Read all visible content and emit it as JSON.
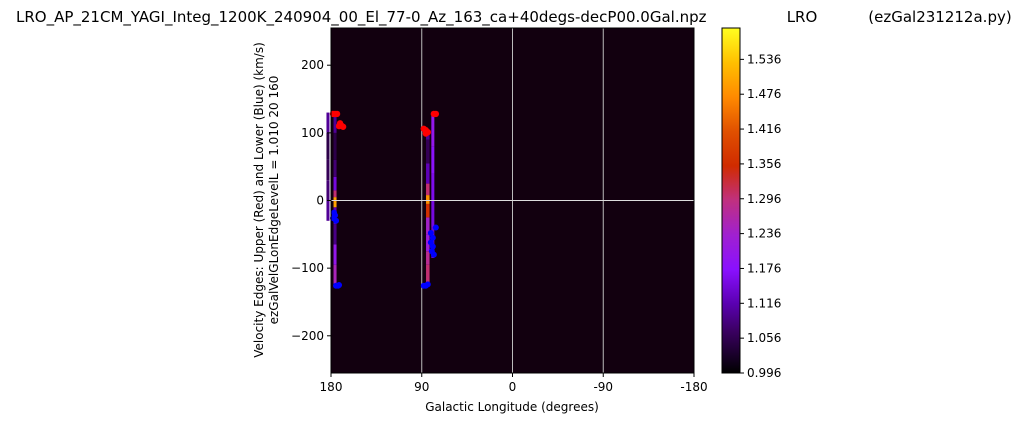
{
  "title": {
    "filename": "LRO_AP_21CM_YAGI_Integ_1200K_240904_00_El_77-0_Az_163_ca+40degs-decP00.0Gal.npz",
    "station": "LRO",
    "program": "(ezGal231212a.py)"
  },
  "chart_data": {
    "type": "heatmap",
    "xlabel": "Galactic Longitude (degrees)",
    "ylabel_line1": "Velocity Edges: Upper (Red) and Lower (Blue) (km/s)",
    "ylabel_line2": "ezGalVelGLonEdgeLevelL = 1.010  20  160",
    "xlim": [
      180,
      -180
    ],
    "ylim": [
      -255,
      255
    ],
    "x_ticks": [
      180,
      90,
      0,
      -90,
      -180
    ],
    "x_tick_labels": [
      "180",
      "90",
      "0",
      "-90",
      "-180"
    ],
    "y_ticks": [
      200,
      100,
      0,
      -100,
      -200
    ],
    "y_tick_labels": [
      "200",
      "100",
      "0",
      "−100",
      "−200"
    ],
    "colorbar": {
      "min": 0.996,
      "max": 1.59,
      "ticks": [
        0.996,
        1.056,
        1.116,
        1.176,
        1.236,
        1.296,
        1.356,
        1.416,
        1.476,
        1.536
      ],
      "tick_labels": [
        "0.996",
        "1.056",
        "1.116",
        "1.176",
        "1.236",
        "1.296",
        "1.356",
        "1.416",
        "1.476",
        "1.536"
      ],
      "colormap": "gnuplot",
      "color_stops": [
        {
          "v": 0.0,
          "color": "#000000"
        },
        {
          "v": 0.12,
          "color": "#3a0060"
        },
        {
          "v": 0.2,
          "color": "#5a00b0"
        },
        {
          "v": 0.3,
          "color": "#8a10ff"
        },
        {
          "v": 0.4,
          "color": "#a020d0"
        },
        {
          "v": 0.5,
          "color": "#c03080"
        },
        {
          "v": 0.6,
          "color": "#d02b00"
        },
        {
          "v": 0.7,
          "color": "#e05000"
        },
        {
          "v": 0.8,
          "color": "#ff8a00"
        },
        {
          "v": 0.9,
          "color": "#ffc000"
        },
        {
          "v": 1.0,
          "color": "#ffff20"
        }
      ]
    },
    "background_color": "#12000f",
    "gridlines_x": [
      90,
      0,
      -90
    ],
    "gridline_y": 0,
    "strips": [
      {
        "name": "strip-glon-176",
        "glon": 176,
        "width_deg": 3,
        "segments": [
          {
            "v0": -125,
            "v1": -95,
            "value": 1.25
          },
          {
            "v0": -95,
            "v1": -65,
            "value": 1.2
          },
          {
            "v0": -65,
            "v1": -35,
            "value": 1.09
          },
          {
            "v0": -35,
            "v1": -10,
            "value": 1.12
          },
          {
            "v0": -10,
            "v1": 5,
            "value": 1.5
          },
          {
            "v0": 5,
            "v1": 15,
            "value": 1.3
          },
          {
            "v0": 15,
            "v1": 35,
            "value": 1.15
          },
          {
            "v0": 35,
            "v1": 60,
            "value": 1.08
          },
          {
            "v0": 60,
            "v1": 100,
            "value": 1.05
          },
          {
            "v0": 100,
            "v1": 128,
            "value": 1.1
          }
        ]
      },
      {
        "name": "strip-glon-183",
        "glon": 183,
        "width_deg": 3,
        "segments": [
          {
            "v0": -30,
            "v1": 0,
            "value": 1.1
          },
          {
            "v0": 0,
            "v1": 30,
            "value": 1.08
          },
          {
            "v0": 30,
            "v1": 60,
            "value": 1.06
          },
          {
            "v0": 60,
            "v1": 100,
            "value": 1.05
          },
          {
            "v0": 100,
            "v1": 130,
            "value": 1.1
          }
        ]
      },
      {
        "name": "strip-glon-84",
        "glon": 84,
        "width_deg": 3.5,
        "segments": [
          {
            "v0": -125,
            "v1": -95,
            "value": 1.3
          },
          {
            "v0": -95,
            "v1": -75,
            "value": 1.28
          },
          {
            "v0": -75,
            "v1": -50,
            "value": 1.22
          },
          {
            "v0": -50,
            "v1": -25,
            "value": 1.24
          },
          {
            "v0": -25,
            "v1": -5,
            "value": 1.36
          },
          {
            "v0": -5,
            "v1": 8,
            "value": 1.48
          },
          {
            "v0": 8,
            "v1": 25,
            "value": 1.3
          },
          {
            "v0": 25,
            "v1": 55,
            "value": 1.12
          },
          {
            "v0": 55,
            "v1": 90,
            "value": 1.06
          },
          {
            "v0": 90,
            "v1": 105,
            "value": 1.1
          }
        ]
      },
      {
        "name": "strip-glon-79",
        "glon": 79,
        "width_deg": 3,
        "segments": [
          {
            "v0": -85,
            "v1": -40,
            "value": 1.14
          },
          {
            "v0": -40,
            "v1": 0,
            "value": 1.15
          },
          {
            "v0": 0,
            "v1": 40,
            "value": 1.16
          },
          {
            "v0": 40,
            "v1": 80,
            "value": 1.18
          },
          {
            "v0": 80,
            "v1": 128,
            "value": 1.2
          }
        ]
      }
    ],
    "upper_edge_points": [
      {
        "glon": 178,
        "v": 128
      },
      {
        "glon": 176,
        "v": 128
      },
      {
        "glon": 174,
        "v": 128
      },
      {
        "glon": 172,
        "v": 110
      },
      {
        "glon": 170,
        "v": 111
      },
      {
        "glon": 171,
        "v": 114
      },
      {
        "glon": 168,
        "v": 109
      },
      {
        "glon": 88,
        "v": 106
      },
      {
        "glon": 86,
        "v": 104
      },
      {
        "glon": 84,
        "v": 101
      },
      {
        "glon": 86,
        "v": 99
      },
      {
        "glon": 78,
        "v": 128
      },
      {
        "glon": 76,
        "v": 128
      }
    ],
    "lower_edge_points": [
      {
        "glon": 175,
        "v": -126
      },
      {
        "glon": 173,
        "v": -126
      },
      {
        "glon": 172,
        "v": -125
      },
      {
        "glon": 176,
        "v": -22
      },
      {
        "glon": 178,
        "v": -26
      },
      {
        "glon": 175,
        "v": -30
      },
      {
        "glon": 177,
        "v": -18
      },
      {
        "glon": 88,
        "v": -126
      },
      {
        "glon": 86,
        "v": -126
      },
      {
        "glon": 84,
        "v": -124
      },
      {
        "glon": 81,
        "v": -48
      },
      {
        "glon": 79,
        "v": -55
      },
      {
        "glon": 81,
        "v": -62
      },
      {
        "glon": 79,
        "v": -68
      },
      {
        "glon": 80,
        "v": -75
      },
      {
        "glon": 78,
        "v": -80
      },
      {
        "glon": 76,
        "v": -40
      }
    ]
  }
}
